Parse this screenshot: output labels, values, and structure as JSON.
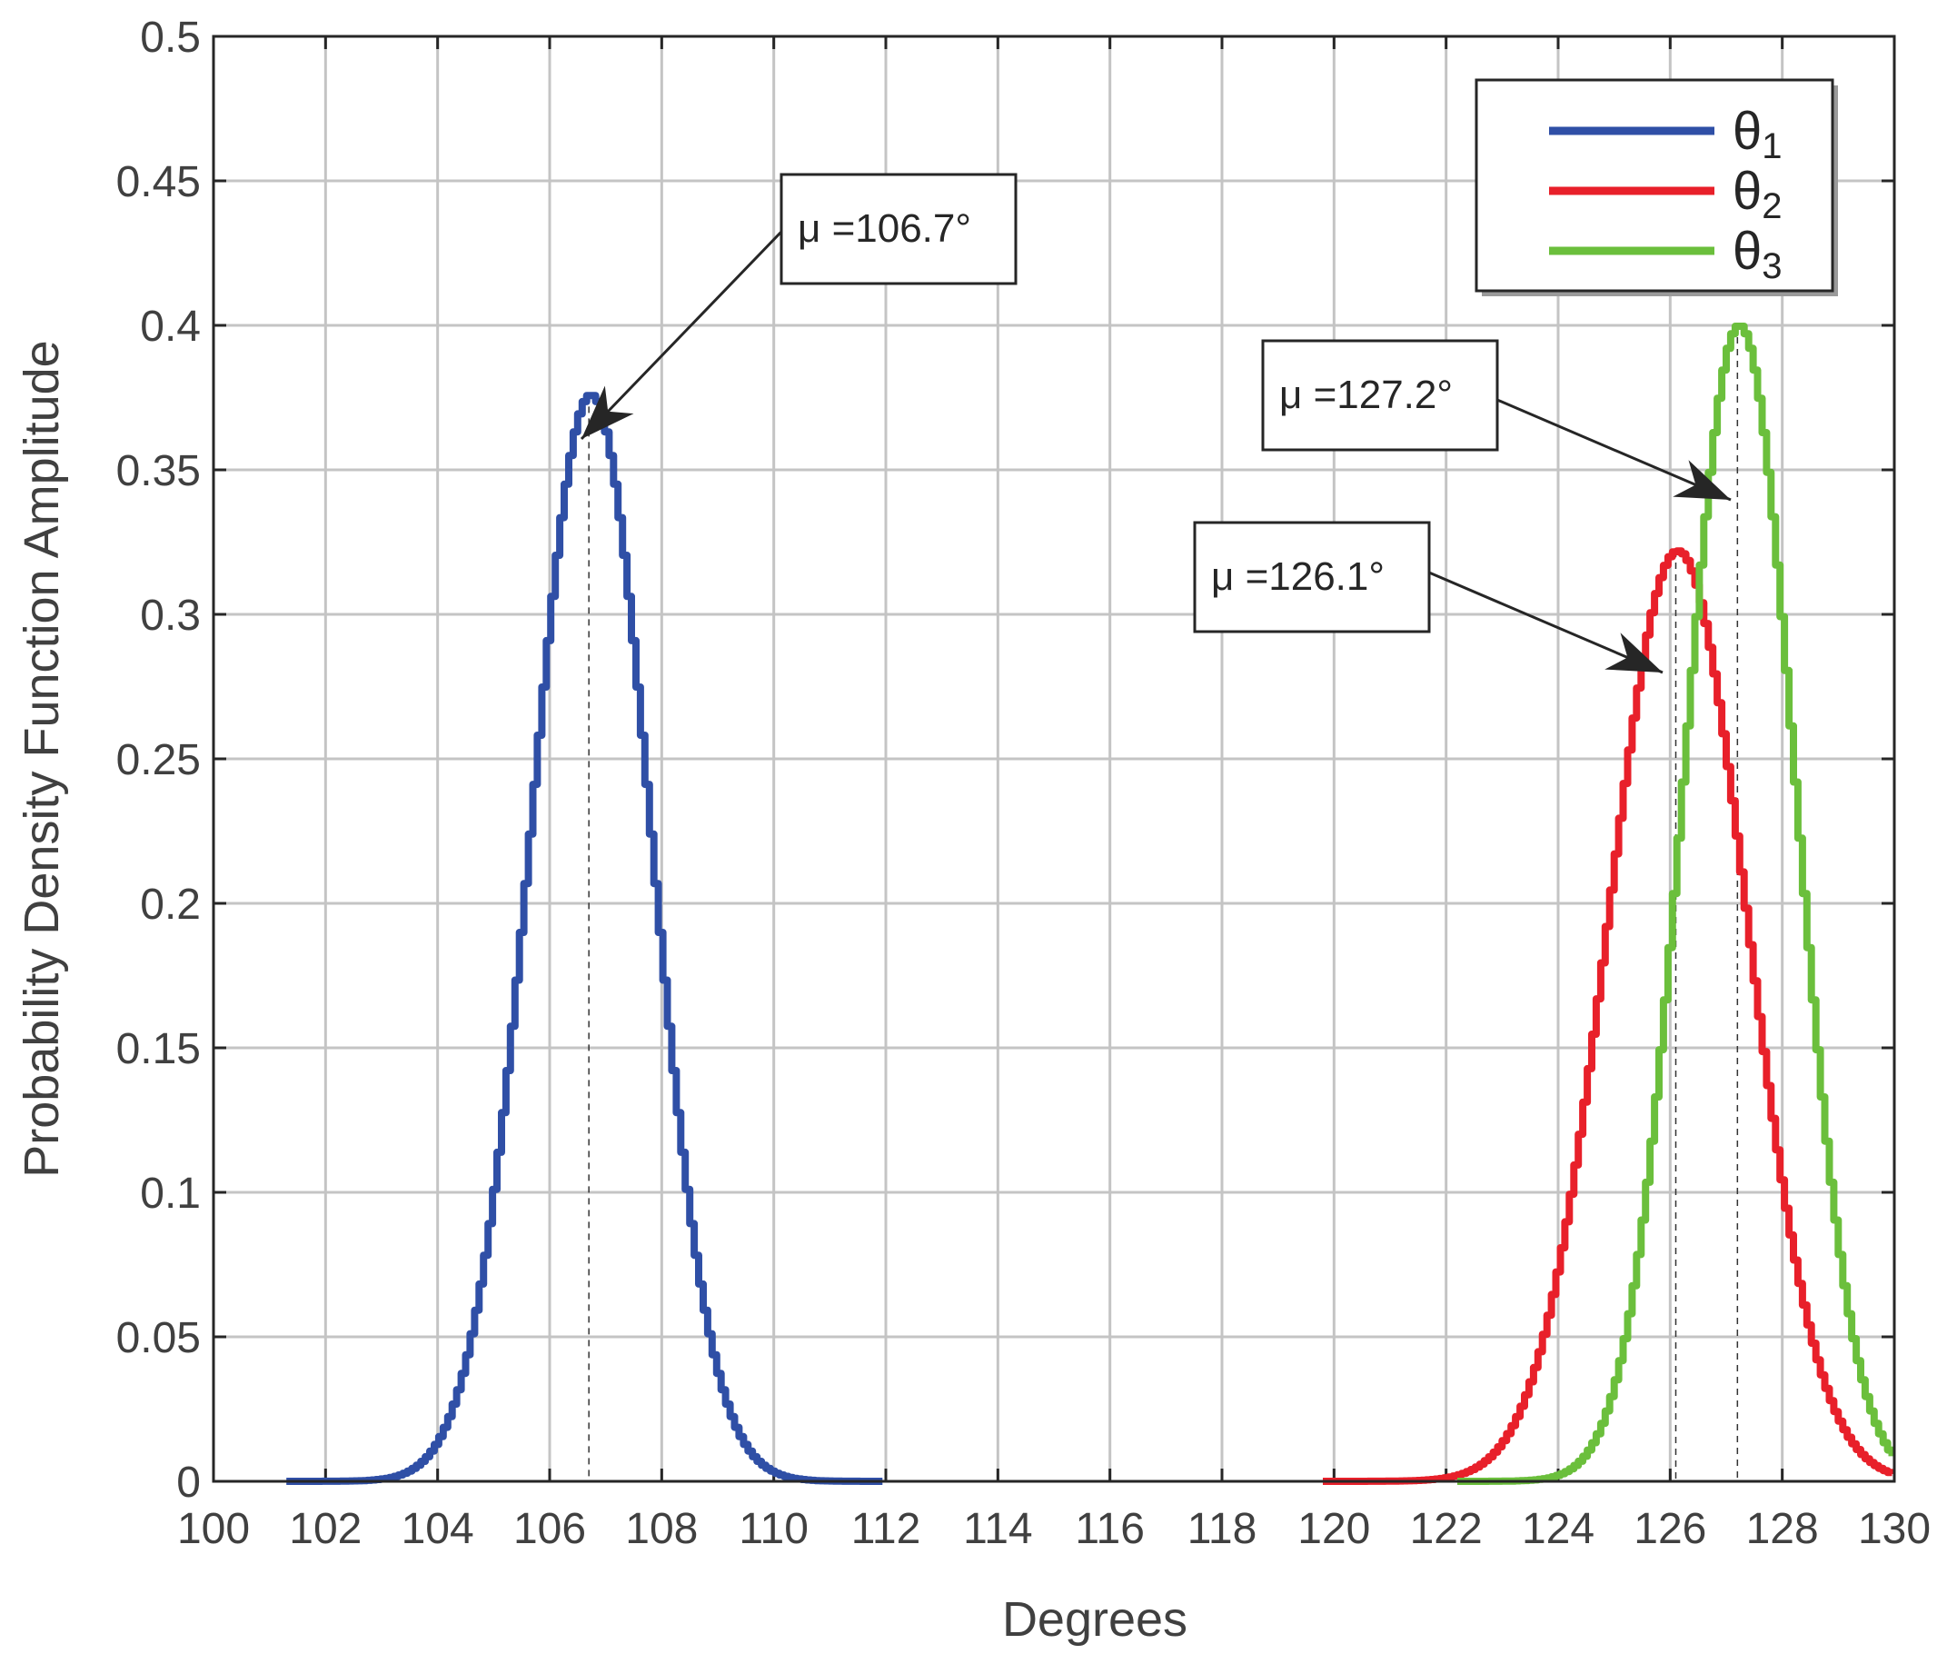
{
  "chart_data": {
    "type": "line",
    "xlabel": "Degrees",
    "ylabel": "Probability Density Function Amplitude",
    "xlim": [
      100,
      130
    ],
    "ylim": [
      0,
      0.5
    ],
    "xticks": [
      "100",
      "102",
      "104",
      "106",
      "108",
      "110",
      "112",
      "114",
      "116",
      "118",
      "120",
      "122",
      "124",
      "126",
      "128",
      "130"
    ],
    "yticks": [
      "0",
      "0.05",
      "0.1",
      "0.15",
      "0.2",
      "0.25",
      "0.3",
      "0.35",
      "0.4",
      "0.45",
      "0.5"
    ],
    "grid": true,
    "legend_position": "top-right",
    "series": [
      {
        "name": "θ1",
        "legend_base": "θ",
        "legend_sub": "1",
        "color": "#2f4fa6",
        "x_range": [
          101.3,
          112
        ],
        "mean": 106.7,
        "peak": 0.376
      },
      {
        "name": "θ2",
        "legend_base": "θ",
        "legend_sub": "2",
        "color": "#e8202a",
        "x_range": [
          119.8,
          130
        ],
        "mean": 126.1,
        "peak": 0.322
      },
      {
        "name": "θ3",
        "legend_base": "θ",
        "legend_sub": "3",
        "color": "#6bbf3c",
        "x_range": [
          122.2,
          130
        ],
        "mean": 127.2,
        "peak": 0.4
      }
    ],
    "annotations": [
      {
        "text": "μ =106.7°",
        "x": 106.7,
        "y": 0.376
      },
      {
        "text": "μ =127.2°",
        "x": 127.2,
        "y": 0.34
      },
      {
        "text": "μ =126.1°",
        "x": 126.1,
        "y": 0.28
      }
    ]
  }
}
